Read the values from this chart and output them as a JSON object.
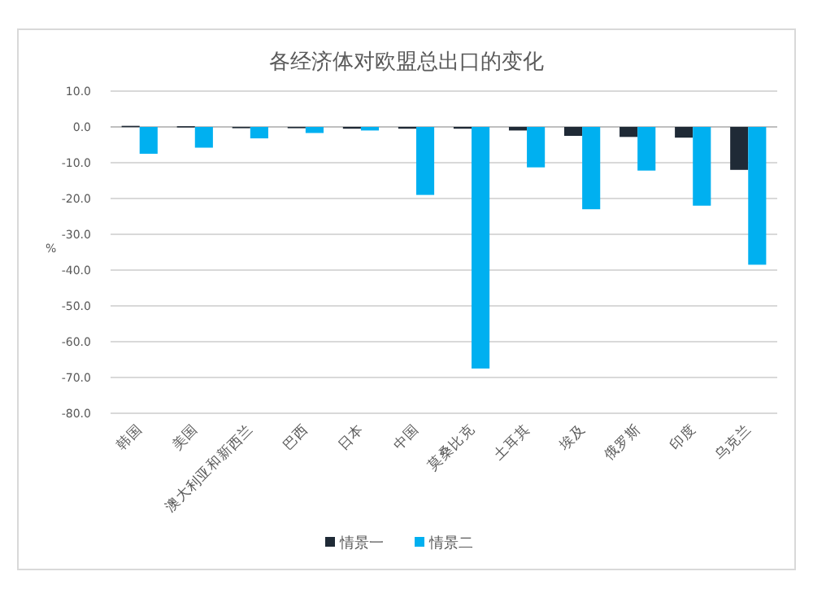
{
  "chart_data": {
    "type": "bar",
    "title": "各经济体对欧盟总出口的变化",
    "ylabel": "%",
    "categories": [
      "韩国",
      "美国",
      "澳大利亚和新西兰",
      "巴西",
      "日本",
      "中国",
      "莫桑比克",
      "土耳其",
      "埃及",
      "俄罗斯",
      "印度",
      "乌克兰"
    ],
    "series": [
      {
        "name": "情景一",
        "color": "#1f2a36",
        "values": [
          0.3,
          0.2,
          -0.3,
          -0.3,
          -0.5,
          -0.5,
          -0.5,
          -1.0,
          -2.5,
          -2.8,
          -3.0,
          -12.0
        ]
      },
      {
        "name": "情景二",
        "color": "#00b0f0",
        "values": [
          -7.5,
          -5.8,
          -3.2,
          -1.7,
          -1.0,
          -19.0,
          -67.5,
          -11.3,
          -23.0,
          -12.2,
          -22.0,
          -38.5
        ]
      }
    ],
    "ylim": [
      -80,
      10
    ],
    "yticks": [
      {
        "value": 10,
        "label": "10.0"
      },
      {
        "value": 0,
        "label": "0.0"
      },
      {
        "value": -10,
        "label": "-10.0"
      },
      {
        "value": -20,
        "label": "-20.0"
      },
      {
        "value": -30,
        "label": "-30.0"
      },
      {
        "value": -40,
        "label": "-40.0"
      },
      {
        "value": -50,
        "label": "-50.0"
      },
      {
        "value": -60,
        "label": "-60.0"
      },
      {
        "value": -70,
        "label": "-70.0"
      },
      {
        "value": -80,
        "label": "-80.0"
      }
    ],
    "grid": "y",
    "legend": "bottom"
  }
}
